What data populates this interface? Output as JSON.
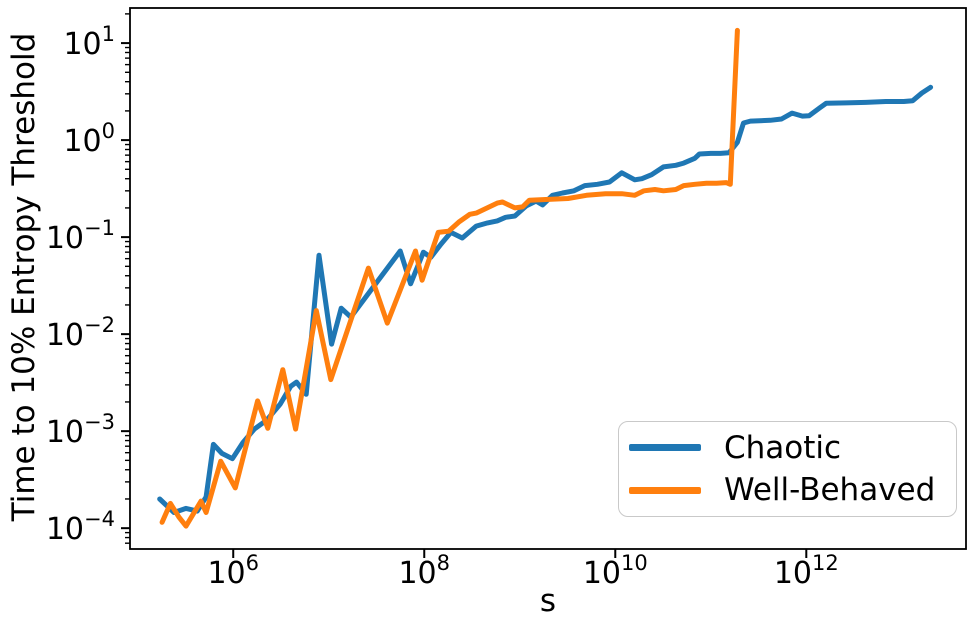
{
  "figure": {
    "background_color": "#ffffff",
    "text_color": "#000000",
    "spine_color": "#000000"
  },
  "chart_data": {
    "type": "line",
    "title": "",
    "xlabel": "s",
    "ylabel": "Time to 10% Entropy Threshold",
    "x_scale": "log",
    "y_scale": "log",
    "xlim": [
      83000.0,
      47000000000000.0
    ],
    "ylim": [
      6.1e-05,
      23
    ],
    "x_tick_exponents": [
      6,
      8,
      10,
      12
    ],
    "y_tick_exponents": [
      -4,
      -3,
      -2,
      -1,
      0,
      1
    ],
    "tick_base": "10",
    "grid": false,
    "legend": {
      "position": "lower right",
      "entries": [
        {
          "label": "Chaotic",
          "color": "#1f77b4"
        },
        {
          "label": "Well-Behaved",
          "color": "#ff7f0e"
        }
      ]
    },
    "series": [
      {
        "name": "Chaotic",
        "color": "#1f77b4",
        "points": [
          [
            170000.0,
            0.0002
          ],
          [
            240000.0,
            0.000145
          ],
          [
            320000.0,
            0.00016
          ],
          [
            420000.0,
            0.00015
          ],
          [
            520000.0,
            0.00021
          ],
          [
            620000.0,
            0.00073
          ],
          [
            760000.0,
            0.00059
          ],
          [
            980000.0,
            0.00052
          ],
          [
            1260000.0,
            0.00076
          ],
          [
            1660000.0,
            0.00105
          ],
          [
            2240000.0,
            0.0013
          ],
          [
            3100000.0,
            0.0019
          ],
          [
            4000000.0,
            0.0029
          ],
          [
            4600000.0,
            0.0032
          ],
          [
            5800000.0,
            0.0024
          ],
          [
            7900000.0,
            0.065
          ],
          [
            10700000.0,
            0.0079
          ],
          [
            13500000.0,
            0.0185
          ],
          [
            17000000.0,
            0.015
          ],
          [
            56000000.0,
            0.072
          ],
          [
            72000000.0,
            0.033
          ],
          [
            98000000.0,
            0.07
          ],
          [
            117000000.0,
            0.062
          ],
          [
            150000000.0,
            0.085
          ],
          [
            190000000.0,
            0.112
          ],
          [
            250000000.0,
            0.098
          ],
          [
            350000000.0,
            0.13
          ],
          [
            460000000.0,
            0.14
          ],
          [
            580000000.0,
            0.147
          ],
          [
            710000000.0,
            0.16
          ],
          [
            890000000.0,
            0.165
          ],
          [
            1170000000.0,
            0.21
          ],
          [
            1480000000.0,
            0.235
          ],
          [
            1740000000.0,
            0.215
          ],
          [
            2200000000.0,
            0.27
          ],
          [
            2800000000.0,
            0.285
          ],
          [
            3700000000.0,
            0.3
          ],
          [
            4800000000.0,
            0.34
          ],
          [
            6500000000.0,
            0.35
          ],
          [
            8700000000.0,
            0.37
          ],
          [
            11700000000.0,
            0.46
          ],
          [
            16000000000.0,
            0.39
          ],
          [
            19000000000.0,
            0.4
          ],
          [
            24000000000.0,
            0.44
          ],
          [
            32000000000.0,
            0.53
          ],
          [
            43000000000.0,
            0.55
          ],
          [
            52000000000.0,
            0.58
          ],
          [
            68000000000.0,
            0.65
          ],
          [
            76000000000.0,
            0.72
          ],
          [
            100000000000.0,
            0.73
          ],
          [
            126000000000.0,
            0.73
          ],
          [
            155000000000.0,
            0.74
          ],
          [
            190000000000.0,
            0.95
          ],
          [
            220000000000.0,
            1.5
          ],
          [
            260000000000.0,
            1.57
          ],
          [
            420000000000.0,
            1.6
          ],
          [
            550000000000.0,
            1.65
          ],
          [
            710000000000.0,
            1.9
          ],
          [
            910000000000.0,
            1.77
          ],
          [
            1070000000000.0,
            1.78
          ],
          [
            1380000000000.0,
            2.15
          ],
          [
            1620000000000.0,
            2.4
          ],
          [
            2600000000000.0,
            2.42
          ],
          [
            4200000000000.0,
            2.45
          ],
          [
            6800000000000.0,
            2.5
          ],
          [
            10500000000000.0,
            2.5
          ],
          [
            13000000000000.0,
            2.55
          ],
          [
            16200000000000.0,
            3.05
          ],
          [
            20000000000000.0,
            3.5
          ]
        ]
      },
      {
        "name": "Well-Behaved",
        "color": "#ff7f0e",
        "points": [
          [
            180000.0,
            0.000115
          ],
          [
            220000.0,
            0.00018
          ],
          [
            270000.0,
            0.00013
          ],
          [
            320000.0,
            0.000105
          ],
          [
            460000.0,
            0.00019
          ],
          [
            520000.0,
            0.000145
          ],
          [
            740000.0,
            0.00049
          ],
          [
            1050000.0,
            0.00026
          ],
          [
            1800000.0,
            0.00205
          ],
          [
            2300000.0,
            0.00107
          ],
          [
            3300000.0,
            0.0043
          ],
          [
            4500000.0,
            0.00105
          ],
          [
            7400000.0,
            0.0175
          ],
          [
            10500000.0,
            0.0034
          ],
          [
            26000000.0,
            0.048
          ],
          [
            41000000.0,
            0.013
          ],
          [
            81000000.0,
            0.072
          ],
          [
            95000000.0,
            0.036
          ],
          [
            140000000.0,
            0.112
          ],
          [
            180000000.0,
            0.115
          ],
          [
            230000000.0,
            0.143
          ],
          [
            300000000.0,
            0.172
          ],
          [
            350000000.0,
            0.177
          ],
          [
            580000000.0,
            0.224
          ],
          [
            660000000.0,
            0.23
          ],
          [
            890000000.0,
            0.2
          ],
          [
            1070000000.0,
            0.205
          ],
          [
            1260000000.0,
            0.24
          ],
          [
            2000000000.0,
            0.245
          ],
          [
            3200000000.0,
            0.25
          ],
          [
            5000000000.0,
            0.27
          ],
          [
            7900000000.0,
            0.28
          ],
          [
            11700000000.0,
            0.28
          ],
          [
            16000000000.0,
            0.27
          ],
          [
            20000000000.0,
            0.3
          ],
          [
            26000000000.0,
            0.31
          ],
          [
            32000000000.0,
            0.3
          ],
          [
            43000000000.0,
            0.31
          ],
          [
            52000000000.0,
            0.34
          ],
          [
            68000000000.0,
            0.35
          ],
          [
            90000000000.0,
            0.36
          ],
          [
            115000000000.0,
            0.36
          ],
          [
            145000000000.0,
            0.365
          ],
          [
            160000000000.0,
            0.35
          ],
          [
            190000000000.0,
            13.5
          ]
        ]
      }
    ]
  }
}
